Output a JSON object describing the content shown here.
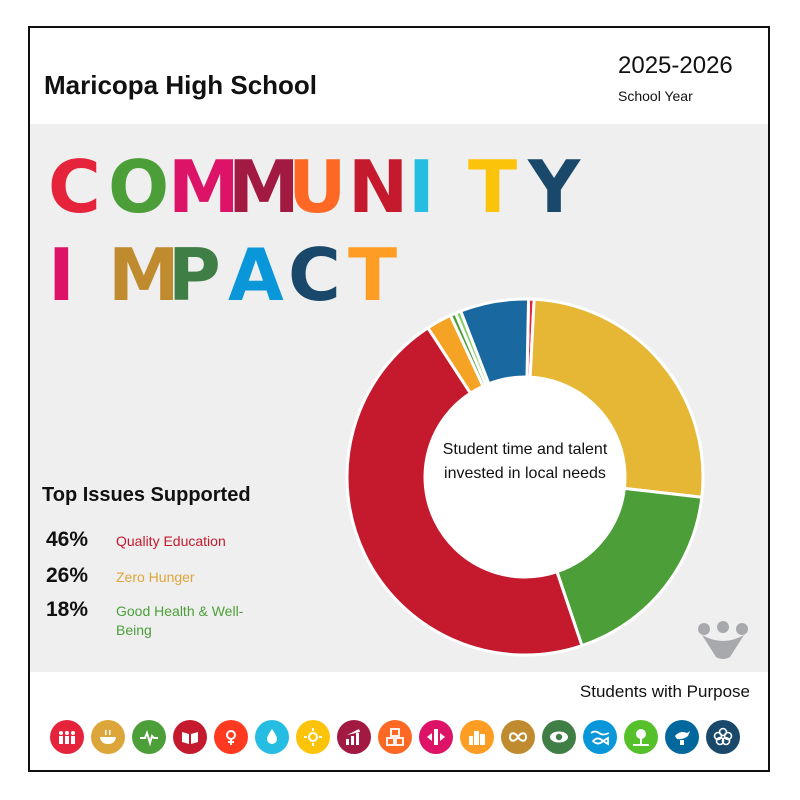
{
  "header": {
    "school_name": "Maricopa High School",
    "year_range": "2025-2026",
    "year_label": "School Year"
  },
  "headline": {
    "line1": [
      "C",
      "O",
      "M",
      "M",
      "U",
      "N",
      "I",
      "T",
      "Y"
    ],
    "line2": [
      "I",
      "M",
      "P",
      "A",
      "C",
      "T"
    ],
    "line1_colors": [
      "#e5243b",
      "#4c9f38",
      "#dd1367",
      "#a21942",
      "#fd6925",
      "#c5192d",
      "#26bde2",
      "#fcc30b",
      "#19486a"
    ],
    "line2_colors": [
      "#dd1367",
      "#bf8b2e",
      "#3f7e44",
      "#0a97d9",
      "#19486a",
      "#fd9d24"
    ]
  },
  "issues": {
    "title": "Top Issues Supported",
    "items": [
      {
        "pct": "46%",
        "name": "Quality Education",
        "color": "#c5192d"
      },
      {
        "pct": "26%",
        "name": "Zero Hunger",
        "color": "#dda63a"
      },
      {
        "pct": "18%",
        "name": "Good Health & Well-Being",
        "color": "#4c9f38"
      }
    ]
  },
  "chart_data": {
    "type": "pie",
    "title": "",
    "center_label": "Student time and talent invested in local needs",
    "categories": [
      "",
      "Zero Hunger",
      "Good Health & Well-Being",
      "Quality Education",
      "",
      "",
      "",
      ""
    ],
    "values": [
      0.5,
      26,
      18,
      46,
      2.3,
      0.5,
      0.5,
      6.2
    ],
    "colors": [
      "#e5243b",
      "#e5b735",
      "#4c9f38",
      "#c5192d",
      "#f4a325",
      "#4c9f38",
      "#8ccf6b",
      "#19689f"
    ]
  },
  "center_text": "Student time and talent invested in local needs",
  "footer": {
    "tagline": "Students with Purpose",
    "icons": [
      {
        "name": "no-poverty-icon",
        "color": "#e5243b"
      },
      {
        "name": "zero-hunger-icon",
        "color": "#dda63a"
      },
      {
        "name": "good-health-icon",
        "color": "#4c9f38"
      },
      {
        "name": "quality-education-icon",
        "color": "#c5192d"
      },
      {
        "name": "gender-equality-icon",
        "color": "#ff3a21"
      },
      {
        "name": "clean-water-icon",
        "color": "#26bde2"
      },
      {
        "name": "clean-energy-icon",
        "color": "#fcc30b"
      },
      {
        "name": "decent-work-icon",
        "color": "#a21942"
      },
      {
        "name": "industry-innovation-icon",
        "color": "#fd6925"
      },
      {
        "name": "reduced-inequalities-icon",
        "color": "#dd1367"
      },
      {
        "name": "sustainable-cities-icon",
        "color": "#fd9d24"
      },
      {
        "name": "responsible-consumption-icon",
        "color": "#bf8b2e"
      },
      {
        "name": "climate-action-icon",
        "color": "#3f7e44"
      },
      {
        "name": "life-below-water-icon",
        "color": "#0a97d9"
      },
      {
        "name": "life-on-land-icon",
        "color": "#56c02b"
      },
      {
        "name": "peace-justice-icon",
        "color": "#00689d"
      },
      {
        "name": "partnerships-icon",
        "color": "#19486a"
      }
    ]
  }
}
